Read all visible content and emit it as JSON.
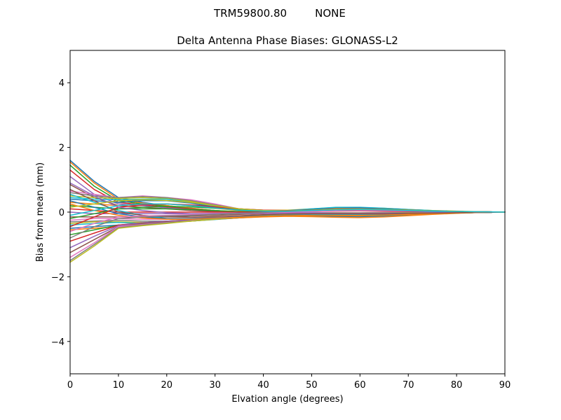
{
  "figure": {
    "suptitle_left": "TRM59800.80",
    "suptitle_right": "NONE"
  },
  "colors": [
    "#1f77b4",
    "#ff7f0e",
    "#2ca02c",
    "#d62728",
    "#9467bd",
    "#8c564b",
    "#e377c2",
    "#7f7f7f",
    "#bcbd22",
    "#17becf"
  ],
  "chart_data": {
    "type": "line",
    "title": "Delta Antenna Phase Biases: GLONASS-L2",
    "xlabel": "Elvation angle (degrees)",
    "ylabel": "Bias from mean (mm)",
    "xlim": [
      0,
      90
    ],
    "ylim": [
      -5,
      5
    ],
    "xticks": [
      0,
      10,
      20,
      30,
      40,
      50,
      60,
      70,
      80,
      90
    ],
    "yticks": [
      -4,
      -2,
      0,
      2,
      4
    ],
    "x": [
      0,
      5,
      10,
      15,
      20,
      25,
      30,
      35,
      40,
      45,
      50,
      55,
      60,
      65,
      70,
      75,
      80,
      85,
      90
    ],
    "grid": false,
    "legend": "none",
    "series": [
      {
        "values": [
          1.6,
          0.95,
          0.45,
          0.3,
          0.2,
          0.12,
          0.05,
          0.0,
          -0.05,
          -0.08,
          -0.1,
          -0.12,
          -0.12,
          -0.1,
          -0.08,
          -0.05,
          -0.03,
          -0.01,
          0
        ]
      },
      {
        "values": [
          1.55,
          0.9,
          0.4,
          0.28,
          0.2,
          0.12,
          0.05,
          0.0,
          -0.04,
          -0.08,
          -0.1,
          -0.11,
          -0.11,
          -0.1,
          -0.07,
          -0.05,
          -0.03,
          -0.01,
          0
        ]
      },
      {
        "values": [
          1.45,
          0.8,
          0.35,
          0.25,
          0.18,
          0.1,
          0.05,
          0.0,
          -0.04,
          -0.07,
          -0.09,
          -0.1,
          -0.1,
          -0.09,
          -0.07,
          -0.04,
          -0.02,
          -0.01,
          0
        ]
      },
      {
        "values": [
          1.3,
          0.7,
          0.3,
          0.22,
          0.15,
          0.1,
          0.04,
          0.0,
          -0.03,
          -0.06,
          -0.08,
          -0.09,
          -0.09,
          -0.08,
          -0.06,
          -0.04,
          -0.02,
          -0.01,
          0
        ]
      },
      {
        "values": [
          1.1,
          0.55,
          0.25,
          0.2,
          0.13,
          0.08,
          0.03,
          0.0,
          -0.03,
          -0.05,
          -0.07,
          -0.08,
          -0.08,
          -0.07,
          -0.05,
          -0.03,
          -0.02,
          -0.01,
          0
        ]
      },
      {
        "values": [
          0.85,
          0.45,
          0.2,
          0.15,
          0.1,
          0.05,
          0.02,
          0.0,
          -0.02,
          -0.04,
          -0.05,
          -0.06,
          -0.06,
          -0.05,
          -0.04,
          -0.03,
          -0.02,
          -0.01,
          0
        ]
      },
      {
        "values": [
          0.65,
          0.55,
          0.45,
          0.5,
          0.45,
          0.38,
          0.25,
          0.1,
          0.05,
          0.05,
          0.08,
          0.1,
          0.1,
          0.08,
          0.06,
          0.04,
          0.02,
          0.01,
          0
        ]
      },
      {
        "values": [
          0.6,
          0.5,
          0.45,
          0.48,
          0.45,
          0.35,
          0.22,
          0.1,
          0.06,
          0.05,
          0.08,
          0.12,
          0.12,
          0.1,
          0.07,
          0.04,
          0.02,
          0.01,
          0
        ]
      },
      {
        "values": [
          0.5,
          0.45,
          0.42,
          0.45,
          0.42,
          0.33,
          0.2,
          0.1,
          0.06,
          0.06,
          0.1,
          0.14,
          0.14,
          0.12,
          0.08,
          0.05,
          0.03,
          0.01,
          0
        ]
      },
      {
        "values": [
          0.45,
          0.4,
          0.38,
          0.4,
          0.4,
          0.3,
          0.18,
          0.08,
          0.05,
          0.05,
          0.1,
          0.15,
          0.15,
          0.12,
          0.08,
          0.05,
          0.02,
          0.01,
          0
        ]
      },
      {
        "values": [
          0.4,
          0.35,
          0.3,
          0.35,
          0.35,
          0.28,
          0.15,
          0.06,
          0.03,
          0.04,
          0.08,
          0.12,
          0.13,
          0.1,
          0.07,
          0.04,
          0.02,
          0.01,
          0
        ]
      },
      {
        "values": [
          0.3,
          0.25,
          0.2,
          0.25,
          0.25,
          0.2,
          0.12,
          0.05,
          0.02,
          0.03,
          0.06,
          0.1,
          0.1,
          0.08,
          0.06,
          0.03,
          0.02,
          0.01,
          0
        ]
      },
      {
        "values": [
          0.2,
          0.15,
          0.1,
          0.1,
          0.1,
          0.08,
          0.05,
          0.02,
          0.01,
          0.02,
          0.04,
          0.06,
          0.07,
          0.06,
          0.04,
          0.02,
          0.01,
          0.0,
          0
        ]
      },
      {
        "values": [
          0.1,
          0.05,
          0.0,
          0.0,
          0.0,
          0.0,
          0.0,
          0.0,
          0.0,
          0.0,
          0.02,
          0.03,
          0.04,
          0.03,
          0.02,
          0.01,
          0.0,
          0.0,
          0
        ]
      },
      {
        "values": [
          0.0,
          -0.05,
          -0.05,
          -0.05,
          -0.05,
          -0.05,
          -0.04,
          -0.03,
          -0.02,
          -0.02,
          -0.02,
          -0.02,
          -0.02,
          -0.01,
          -0.01,
          0.0,
          0.0,
          0.0,
          0
        ]
      },
      {
        "values": [
          -0.15,
          -0.15,
          -0.15,
          -0.15,
          -0.15,
          -0.12,
          -0.1,
          -0.07,
          -0.05,
          -0.04,
          -0.04,
          -0.05,
          -0.05,
          -0.05,
          -0.04,
          -0.03,
          -0.02,
          -0.01,
          0
        ]
      },
      {
        "values": [
          -0.25,
          -0.2,
          -0.2,
          -0.22,
          -0.22,
          -0.2,
          -0.16,
          -0.12,
          -0.08,
          -0.05,
          -0.04,
          -0.05,
          -0.06,
          -0.06,
          -0.05,
          -0.03,
          -0.02,
          -0.01,
          0
        ]
      },
      {
        "values": [
          -0.3,
          -0.28,
          -0.25,
          -0.28,
          -0.28,
          -0.25,
          -0.2,
          -0.15,
          -0.1,
          -0.07,
          -0.05,
          -0.06,
          -0.08,
          -0.07,
          -0.05,
          -0.04,
          -0.02,
          -0.01,
          0
        ]
      },
      {
        "values": [
          -0.35,
          -0.3,
          -0.3,
          -0.32,
          -0.3,
          -0.27,
          -0.22,
          -0.17,
          -0.12,
          -0.08,
          -0.06,
          -0.06,
          -0.08,
          -0.08,
          -0.06,
          -0.04,
          -0.02,
          -0.01,
          0
        ]
      },
      {
        "values": [
          -0.4,
          -0.35,
          -0.32,
          -0.35,
          -0.32,
          -0.28,
          -0.23,
          -0.18,
          -0.13,
          -0.1,
          -0.08,
          -0.08,
          -0.1,
          -0.1,
          -0.07,
          -0.05,
          -0.03,
          -0.01,
          0
        ]
      },
      {
        "values": [
          -0.5,
          -0.45,
          -0.4,
          -0.35,
          -0.3,
          -0.28,
          -0.22,
          -0.18,
          -0.14,
          -0.12,
          -0.12,
          -0.14,
          -0.15,
          -0.13,
          -0.1,
          -0.06,
          -0.03,
          -0.01,
          0
        ]
      },
      {
        "values": [
          -0.55,
          -0.5,
          -0.45,
          -0.38,
          -0.32,
          -0.28,
          -0.22,
          -0.18,
          -0.15,
          -0.13,
          -0.14,
          -0.16,
          -0.17,
          -0.15,
          -0.11,
          -0.07,
          -0.04,
          -0.01,
          0
        ]
      },
      {
        "values": [
          -0.7,
          -0.55,
          -0.4,
          -0.35,
          -0.3,
          -0.25,
          -0.2,
          -0.16,
          -0.13,
          -0.11,
          -0.1,
          -0.1,
          -0.1,
          -0.09,
          -0.07,
          -0.05,
          -0.03,
          -0.01,
          0
        ]
      },
      {
        "values": [
          -0.9,
          -0.65,
          -0.4,
          -0.33,
          -0.28,
          -0.24,
          -0.19,
          -0.15,
          -0.12,
          -0.1,
          -0.09,
          -0.09,
          -0.09,
          -0.08,
          -0.06,
          -0.04,
          -0.02,
          -0.01,
          0
        ]
      },
      {
        "values": [
          -1.1,
          -0.75,
          -0.42,
          -0.33,
          -0.28,
          -0.24,
          -0.19,
          -0.15,
          -0.12,
          -0.1,
          -0.08,
          -0.08,
          -0.08,
          -0.07,
          -0.05,
          -0.04,
          -0.02,
          -0.01,
          0
        ]
      },
      {
        "values": [
          -1.25,
          -0.85,
          -0.45,
          -0.35,
          -0.3,
          -0.25,
          -0.2,
          -0.15,
          -0.12,
          -0.09,
          -0.07,
          -0.06,
          -0.06,
          -0.05,
          -0.04,
          -0.03,
          -0.02,
          -0.01,
          0
        ]
      },
      {
        "values": [
          -1.4,
          -0.95,
          -0.45,
          -0.38,
          -0.32,
          -0.26,
          -0.2,
          -0.15,
          -0.11,
          -0.08,
          -0.05,
          -0.04,
          -0.04,
          -0.04,
          -0.03,
          -0.02,
          -0.01,
          0.0,
          0
        ]
      },
      {
        "values": [
          -1.5,
          -1.0,
          -0.48,
          -0.4,
          -0.33,
          -0.27,
          -0.21,
          -0.15,
          -0.11,
          -0.07,
          -0.04,
          -0.03,
          -0.03,
          -0.03,
          -0.02,
          -0.02,
          -0.01,
          0.0,
          0
        ]
      },
      {
        "values": [
          -1.55,
          -1.05,
          -0.5,
          -0.42,
          -0.35,
          -0.28,
          -0.22,
          -0.16,
          -0.11,
          -0.07,
          -0.04,
          -0.03,
          -0.03,
          -0.03,
          -0.02,
          -0.02,
          -0.01,
          0.0,
          0
        ]
      },
      {
        "values": [
          0.55,
          0.3,
          0.05,
          -0.1,
          -0.2,
          -0.22,
          -0.2,
          -0.16,
          -0.12,
          -0.1,
          -0.08,
          -0.07,
          -0.07,
          -0.06,
          -0.05,
          -0.03,
          -0.02,
          -0.01,
          0
        ]
      },
      {
        "values": [
          0.35,
          0.15,
          -0.05,
          -0.15,
          -0.2,
          -0.2,
          -0.18,
          -0.15,
          -0.12,
          -0.1,
          -0.09,
          -0.09,
          -0.09,
          -0.08,
          -0.06,
          -0.04,
          -0.02,
          -0.01,
          0
        ]
      },
      {
        "values": [
          0.25,
          0.05,
          -0.1,
          -0.18,
          -0.22,
          -0.22,
          -0.19,
          -0.16,
          -0.13,
          -0.11,
          -0.1,
          -0.1,
          -0.1,
          -0.09,
          -0.07,
          -0.05,
          -0.03,
          -0.01,
          0
        ]
      },
      {
        "values": [
          -0.2,
          -0.05,
          0.1,
          0.15,
          0.18,
          0.16,
          0.12,
          0.08,
          0.05,
          0.04,
          0.05,
          0.06,
          0.07,
          0.06,
          0.05,
          0.03,
          0.02,
          0.01,
          0
        ]
      },
      {
        "values": [
          -0.45,
          -0.15,
          0.15,
          0.22,
          0.25,
          0.22,
          0.16,
          0.1,
          0.06,
          0.05,
          0.06,
          0.08,
          0.09,
          0.08,
          0.06,
          0.04,
          0.02,
          0.01,
          0
        ]
      },
      {
        "values": [
          0.9,
          0.5,
          0.15,
          0.05,
          -0.02,
          -0.05,
          -0.06,
          -0.05,
          -0.04,
          -0.03,
          -0.03,
          -0.04,
          -0.04,
          -0.04,
          -0.03,
          -0.02,
          -0.01,
          0.0,
          0
        ]
      },
      {
        "values": [
          0.7,
          0.35,
          0.0,
          -0.1,
          -0.15,
          -0.16,
          -0.14,
          -0.11,
          -0.08,
          -0.06,
          -0.05,
          -0.05,
          -0.05,
          -0.05,
          -0.04,
          -0.03,
          -0.02,
          -0.01,
          0
        ]
      },
      {
        "values": [
          -0.6,
          -0.35,
          -0.15,
          -0.12,
          -0.1,
          -0.08,
          -0.06,
          -0.04,
          -0.02,
          0.0,
          0.02,
          0.04,
          0.05,
          0.05,
          0.04,
          0.03,
          0.02,
          0.01,
          0
        ]
      },
      {
        "values": [
          -0.8,
          -0.45,
          -0.2,
          -0.15,
          -0.12,
          -0.1,
          -0.07,
          -0.04,
          -0.01,
          0.02,
          0.05,
          0.08,
          0.09,
          0.08,
          0.06,
          0.04,
          0.02,
          0.01,
          0
        ]
      },
      {
        "values": [
          0.15,
          0.25,
          0.35,
          0.38,
          0.36,
          0.3,
          0.2,
          0.1,
          0.05,
          0.04,
          0.06,
          0.08,
          0.09,
          0.08,
          0.06,
          0.04,
          0.02,
          0.01,
          0
        ]
      },
      {
        "values": [
          -0.1,
          0.05,
          0.2,
          0.25,
          0.25,
          0.2,
          0.13,
          0.06,
          0.03,
          0.03,
          0.05,
          0.07,
          0.08,
          0.07,
          0.05,
          0.03,
          0.02,
          0.01,
          0
        ]
      }
    ]
  }
}
